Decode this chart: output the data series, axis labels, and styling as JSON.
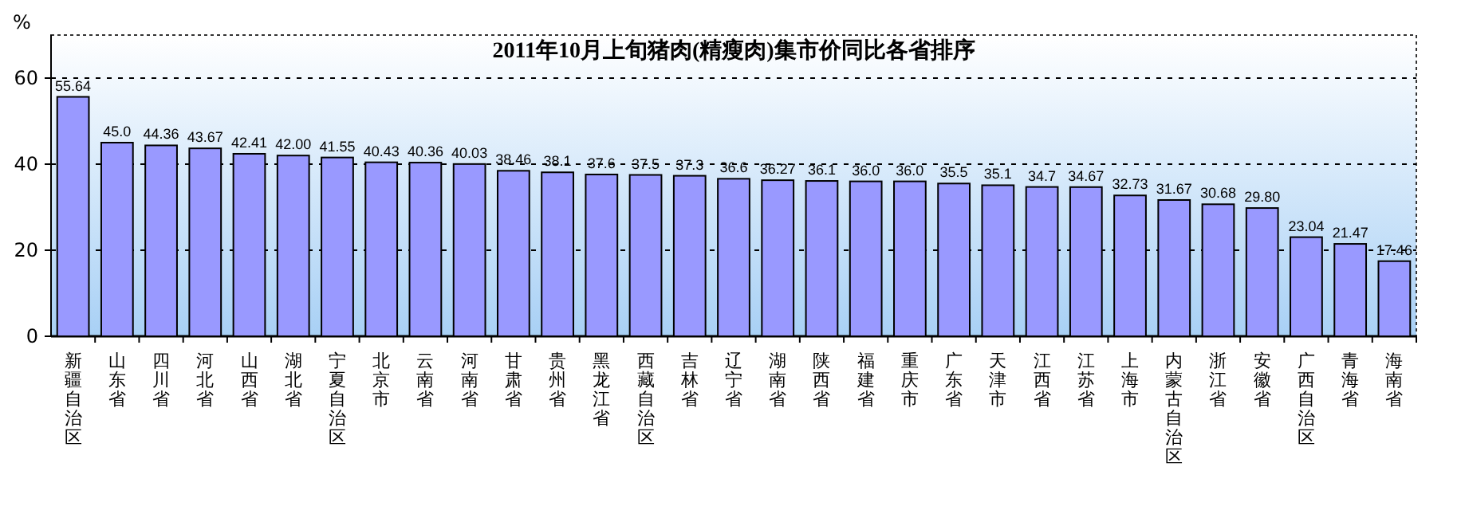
{
  "chart_data": {
    "type": "bar",
    "title": "2011年10月上旬猪肉(精瘦肉)集市价同比各省排序",
    "ylabel": "%",
    "categories": [
      "新疆自治区",
      "山东省",
      "四川省",
      "河北省",
      "山西省",
      "湖北省",
      "宁夏自治区",
      "北京市",
      "云南省",
      "河南省",
      "甘肃省",
      "贵州省",
      "黑龙江省",
      "西藏自治区",
      "吉林省",
      "辽宁省",
      "湖南省",
      "陕西省",
      "福建省",
      "重庆市",
      "广东省",
      "天津市",
      "江西省",
      "江苏省",
      "上海市",
      "内蒙古自治区",
      "浙江省",
      "安徽省",
      "广西自治区",
      "青海省",
      "海南省"
    ],
    "values": [
      55.64,
      45.0,
      44.36,
      43.67,
      42.41,
      42.0,
      41.55,
      40.43,
      40.36,
      40.03,
      38.46,
      38.1,
      37.6,
      37.5,
      37.3,
      36.6,
      36.27,
      36.1,
      36.0,
      36.0,
      35.5,
      35.1,
      34.7,
      34.67,
      32.73,
      31.67,
      30.68,
      29.8,
      23.04,
      21.47,
      17.46
    ],
    "value_labels": [
      "55.64",
      "45.0",
      "44.36",
      "43.67",
      "42.41",
      "42.00",
      "41.55",
      "40.43",
      "40.36",
      "40.03",
      "38.46",
      "38.1",
      "37.6",
      "37.5",
      "37.3",
      "36.6",
      "36.27",
      "36.1",
      "36.0",
      "36.0",
      "35.5",
      "35.1",
      "34.7",
      "34.67",
      "32.73",
      "31.67",
      "30.68",
      "29.80",
      "23.04",
      "21.47",
      "17.46"
    ],
    "color": "#9999ff",
    "ylim": [
      0,
      70
    ],
    "yticks": [
      0,
      20,
      40,
      60
    ],
    "grid": "y"
  }
}
